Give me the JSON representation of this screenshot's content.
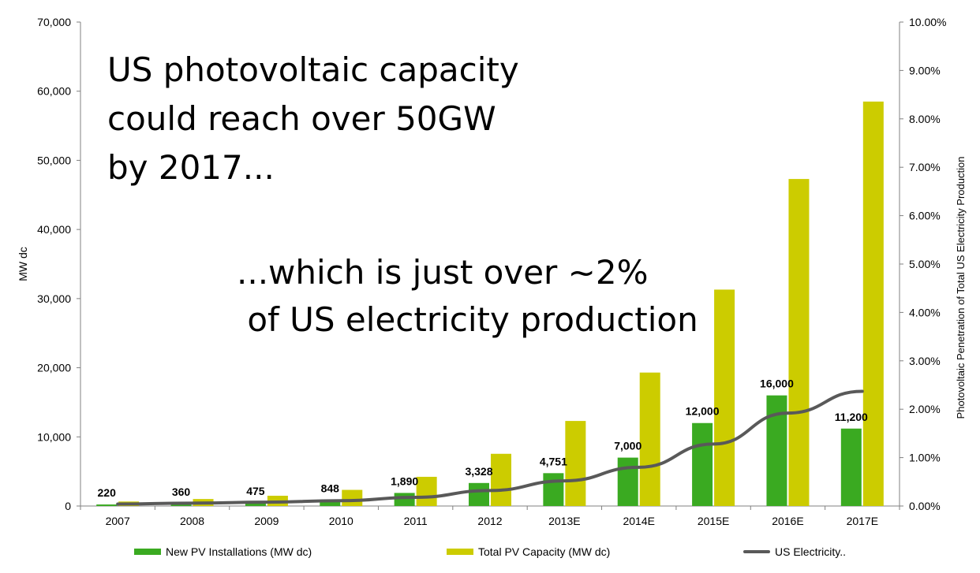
{
  "chart_data": {
    "type": "bar",
    "categories": [
      "2007",
      "2008",
      "2009",
      "2010",
      "2011",
      "2012",
      "2013E",
      "2014E",
      "2015E",
      "2016E",
      "2017E"
    ],
    "series": [
      {
        "name": "New PV Installations (MW dc)",
        "kind": "bar",
        "axis": "left",
        "color": "#3aaa21",
        "values": [
          220,
          360,
          475,
          848,
          1890,
          3328,
          4751,
          7000,
          12000,
          16000,
          11200
        ],
        "labels": [
          "220",
          "360",
          "475",
          "848",
          "1,890",
          "3,328",
          "4,751",
          "7,000",
          "12,000",
          "16,000",
          "11,200"
        ]
      },
      {
        "name": "Total PV Capacity (MW dc)",
        "kind": "bar",
        "axis": "left",
        "color": "#cccc00",
        "values": [
          650,
          1010,
          1485,
          2333,
          4223,
          7551,
          12302,
          19302,
          31302,
          47302,
          58502
        ]
      },
      {
        "name": "US Electricity..",
        "kind": "line",
        "axis": "right",
        "color": "#595959",
        "values": [
          0.0004,
          0.0006,
          0.0008,
          0.0011,
          0.0018,
          0.0032,
          0.0052,
          0.008,
          0.0128,
          0.0192,
          0.0237
        ]
      }
    ],
    "title": "",
    "xlabel": "",
    "ylabel": "MW dc",
    "y2label": "Photovoltaic Penetration of Total US Electricity Production",
    "ylim": [
      0,
      70000
    ],
    "y2lim": [
      0,
      0.1
    ],
    "yticks": [
      "0",
      "10,000",
      "20,000",
      "30,000",
      "40,000",
      "50,000",
      "60,000",
      "70,000"
    ],
    "y2ticks": [
      "0.00%",
      "1.00%",
      "2.00%",
      "3.00%",
      "4.00%",
      "5.00%",
      "6.00%",
      "7.00%",
      "8.00%",
      "9.00%",
      "10.00%"
    ],
    "grid": false,
    "legend_position": "bottom"
  },
  "overlay": {
    "title": "US photovoltaic capacity\ncould reach over 50GW\nby 2017...",
    "note": "...which is just over ~2%\n of US electricity production"
  }
}
